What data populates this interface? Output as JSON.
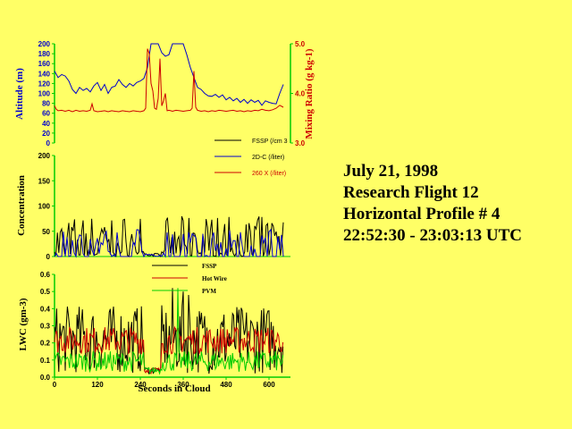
{
  "info": {
    "date": "July 21, 1998",
    "flight": "Research Flight 12",
    "profile": "Horizontal Profile # 4",
    "time_range": "22:52:30 - 23:03:13 UTC"
  },
  "colors": {
    "background": "#ffff66",
    "black": "#000000",
    "blue": "#0000cc",
    "red": "#cc0000",
    "green": "#00cc00"
  },
  "chart_data": [
    {
      "type": "line",
      "ylabel": "Altitude (m)",
      "y2label": "Mixing Ratio (g kg-1)",
      "ylim": [
        0,
        200
      ],
      "y2lim": [
        3.0,
        5.0
      ],
      "yticks": [
        "0",
        "20",
        "40",
        "60",
        "80",
        "100",
        "120",
        "140",
        "160",
        "180",
        "200"
      ],
      "y2ticks": [
        "3.0",
        "4.0",
        "5.0"
      ],
      "series": [
        {
          "axis": "left",
          "color": "#0000cc",
          "x": [
            0,
            10,
            20,
            30,
            40,
            50,
            60,
            70,
            80,
            90,
            100,
            110,
            120,
            130,
            140,
            150,
            160,
            170,
            180,
            190,
            200,
            210,
            220,
            230,
            240,
            250,
            260,
            270,
            280,
            290,
            300,
            310,
            320,
            330,
            340,
            350,
            360,
            370,
            380,
            390,
            400,
            410,
            420,
            430,
            440,
            450,
            460,
            470,
            480,
            490,
            500,
            510,
            520,
            530,
            540,
            550,
            560,
            570,
            580,
            590,
            600,
            610,
            620,
            630,
            640
          ],
          "y": [
            145,
            132,
            138,
            135,
            125,
            108,
            100,
            112,
            106,
            110,
            103,
            115,
            122,
            106,
            118,
            100,
            112,
            115,
            128,
            118,
            112,
            120,
            115,
            122,
            125,
            130,
            152,
            200,
            200,
            200,
            182,
            175,
            178,
            200,
            200,
            200,
            200,
            178,
            152,
            132,
            112,
            108,
            100,
            95,
            94,
            98,
            92,
            97,
            87,
            92,
            85,
            90,
            82,
            88,
            80,
            87,
            82,
            86,
            76,
            85,
            82,
            80,
            79,
            100,
            118
          ]
        },
        {
          "axis": "right",
          "color": "#cc0000",
          "x": [
            0,
            5,
            10,
            20,
            30,
            40,
            50,
            60,
            70,
            80,
            90,
            100,
            105,
            110,
            120,
            130,
            140,
            150,
            160,
            170,
            180,
            190,
            200,
            210,
            220,
            230,
            240,
            250,
            255,
            260,
            265,
            270,
            275,
            280,
            285,
            290,
            295,
            300,
            305,
            310,
            315,
            320,
            325,
            330,
            335,
            340,
            350,
            360,
            370,
            380,
            385,
            390,
            395,
            400,
            410,
            420,
            430,
            440,
            450,
            460,
            470,
            480,
            490,
            500,
            510,
            520,
            530,
            540,
            550,
            560,
            570,
            580,
            590,
            600,
            610,
            620,
            630,
            640
          ],
          "y": [
            3.75,
            3.68,
            3.65,
            3.66,
            3.64,
            3.66,
            3.63,
            3.66,
            3.64,
            3.65,
            3.64,
            3.66,
            3.79,
            3.65,
            3.63,
            3.64,
            3.65,
            3.63,
            3.65,
            3.64,
            3.63,
            3.65,
            3.64,
            3.63,
            3.65,
            3.64,
            3.63,
            3.65,
            3.7,
            4.9,
            4.8,
            4.2,
            4.05,
            3.7,
            3.68,
            3.9,
            4.7,
            3.75,
            3.85,
            4.0,
            3.65,
            3.66,
            3.65,
            3.64,
            3.65,
            3.66,
            3.65,
            3.64,
            3.65,
            3.66,
            3.7,
            4.45,
            3.72,
            3.66,
            3.64,
            3.65,
            3.63,
            3.65,
            3.64,
            3.66,
            3.65,
            3.64,
            3.65,
            3.66,
            3.64,
            3.65,
            3.63,
            3.65,
            3.64,
            3.66,
            3.65,
            3.68,
            3.66,
            3.65,
            3.67,
            3.7,
            3.76,
            3.72
          ]
        }
      ],
      "legend": [
        {
          "label": "FSSP (/cm 3",
          "color": "#000000"
        },
        {
          "label": "2D-C (/liter)",
          "color": "#0000cc"
        },
        {
          "label": "260 X (/liter)",
          "color": "#cc0000"
        }
      ]
    },
    {
      "type": "line",
      "ylabel": "Concentration",
      "ylim": [
        0,
        200
      ],
      "yticks": [
        "0",
        "50",
        "100",
        "150",
        "200"
      ],
      "gap": [
        250,
        300
      ],
      "series": [
        {
          "color": "#000000",
          "amplitude": [
            10,
            80
          ],
          "spacing": 4
        },
        {
          "color": "#0000cc",
          "amplitude": [
            0,
            55
          ],
          "spacing": 5
        }
      ]
    },
    {
      "type": "line",
      "ylabel": "LWC (gm-3)",
      "xlabel": "Seconds in Cloud",
      "xlim": [
        0,
        660
      ],
      "xticks": [
        "0",
        "120",
        "240",
        "360",
        "480",
        "600"
      ],
      "xtick_values": [
        0,
        120,
        240,
        360,
        480,
        600
      ],
      "ylim": [
        0,
        0.6
      ],
      "yticks": [
        "0.0",
        "0.1",
        "0.2",
        "0.3",
        "0.4",
        "0.5",
        "0.6"
      ],
      "series": [
        {
          "name": "FSSP",
          "color": "#000000",
          "base": 0.18,
          "amp": 0.2,
          "peaks": [
            [
              330,
              0.52
            ],
            [
              360,
              0.5
            ],
            [
              375,
              0.48
            ]
          ]
        },
        {
          "name": "Hot Wire",
          "color": "#cc0000",
          "base": 0.2,
          "amp": 0.08
        },
        {
          "name": "PVM",
          "color": "#00cc00",
          "base": 0.08,
          "amp": 0.06,
          "peaks": [
            [
              345,
              0.52
            ]
          ]
        }
      ],
      "legend": [
        {
          "label": "FSSP",
          "color": "#000000"
        },
        {
          "label": "Hot Wire",
          "color": "#cc0000"
        },
        {
          "label": "PVM",
          "color": "#00cc00"
        }
      ]
    }
  ]
}
